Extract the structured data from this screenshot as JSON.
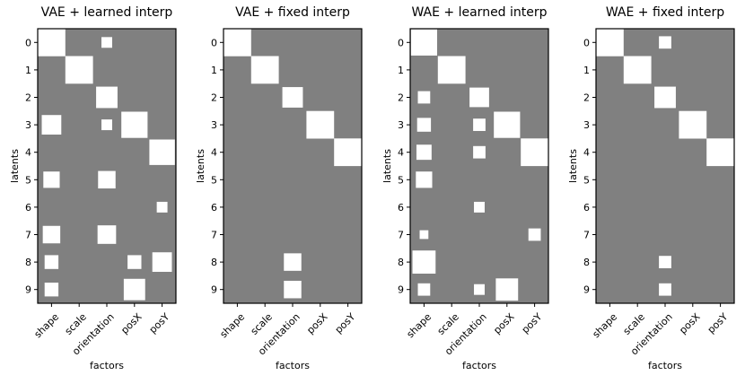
{
  "figure": {
    "background": "#ffffff",
    "cell_color": "#808080",
    "mark_color": "#ffffff",
    "frame_color": "#000000"
  },
  "chart_data": [
    {
      "type": "heatmap",
      "title": "VAE + learned interp",
      "xlabel": "factors",
      "ylabel": "latents",
      "factors": [
        "shape",
        "scale",
        "orientation",
        "posX",
        "posY"
      ],
      "latents": [
        "0",
        "1",
        "2",
        "3",
        "4",
        "5",
        "6",
        "7",
        "8",
        "9"
      ],
      "cells": [
        {
          "latent": 0,
          "factor": 0,
          "value": 1.0
        },
        {
          "latent": 0,
          "factor": 2,
          "value": 0.15
        },
        {
          "latent": 1,
          "factor": 1,
          "value": 1.0
        },
        {
          "latent": 2,
          "factor": 2,
          "value": 0.6
        },
        {
          "latent": 3,
          "factor": 0,
          "value": 0.5
        },
        {
          "latent": 3,
          "factor": 2,
          "value": 0.15
        },
        {
          "latent": 3,
          "factor": 3,
          "value": 0.9
        },
        {
          "latent": 4,
          "factor": 4,
          "value": 0.85
        },
        {
          "latent": 5,
          "factor": 0,
          "value": 0.35
        },
        {
          "latent": 5,
          "factor": 2,
          "value": 0.4
        },
        {
          "latent": 6,
          "factor": 4,
          "value": 0.15
        },
        {
          "latent": 7,
          "factor": 0,
          "value": 0.4
        },
        {
          "latent": 7,
          "factor": 2,
          "value": 0.45
        },
        {
          "latent": 8,
          "factor": 0,
          "value": 0.25
        },
        {
          "latent": 8,
          "factor": 3,
          "value": 0.25
        },
        {
          "latent": 8,
          "factor": 4,
          "value": 0.5
        },
        {
          "latent": 9,
          "factor": 0,
          "value": 0.25
        },
        {
          "latent": 9,
          "factor": 3,
          "value": 0.6
        }
      ]
    },
    {
      "type": "heatmap",
      "title": "VAE + fixed interp",
      "xlabel": "factors",
      "ylabel": "latents",
      "factors": [
        "shape",
        "scale",
        "orientation",
        "posX",
        "posY"
      ],
      "latents": [
        "0",
        "1",
        "2",
        "3",
        "4",
        "5",
        "6",
        "7",
        "8",
        "9"
      ],
      "cells": [
        {
          "latent": 0,
          "factor": 0,
          "value": 1.0
        },
        {
          "latent": 1,
          "factor": 1,
          "value": 1.0
        },
        {
          "latent": 2,
          "factor": 2,
          "value": 0.55
        },
        {
          "latent": 3,
          "factor": 3,
          "value": 1.0
        },
        {
          "latent": 4,
          "factor": 4,
          "value": 1.0
        },
        {
          "latent": 8,
          "factor": 2,
          "value": 0.4
        },
        {
          "latent": 9,
          "factor": 2,
          "value": 0.4
        }
      ]
    },
    {
      "type": "heatmap",
      "title": "WAE + learned interp",
      "xlabel": "factors",
      "ylabel": "latents",
      "factors": [
        "shape",
        "scale",
        "orientation",
        "posX",
        "posY"
      ],
      "latents": [
        "0",
        "1",
        "2",
        "3",
        "4",
        "5",
        "6",
        "7",
        "8",
        "9"
      ],
      "cells": [
        {
          "latent": 0,
          "factor": 0,
          "value": 0.9
        },
        {
          "latent": 1,
          "factor": 1,
          "value": 1.0
        },
        {
          "latent": 2,
          "factor": 0,
          "value": 0.2
        },
        {
          "latent": 2,
          "factor": 2,
          "value": 0.5
        },
        {
          "latent": 3,
          "factor": 0,
          "value": 0.25
        },
        {
          "latent": 3,
          "factor": 2,
          "value": 0.2
        },
        {
          "latent": 3,
          "factor": 3,
          "value": 0.9
        },
        {
          "latent": 4,
          "factor": 0,
          "value": 0.3
        },
        {
          "latent": 4,
          "factor": 2,
          "value": 0.2
        },
        {
          "latent": 4,
          "factor": 4,
          "value": 1.0
        },
        {
          "latent": 5,
          "factor": 0,
          "value": 0.35
        },
        {
          "latent": 6,
          "factor": 2,
          "value": 0.15
        },
        {
          "latent": 7,
          "factor": 0,
          "value": 0.1
        },
        {
          "latent": 7,
          "factor": 4,
          "value": 0.2
        },
        {
          "latent": 8,
          "factor": 0,
          "value": 0.7
        },
        {
          "latent": 9,
          "factor": 0,
          "value": 0.2
        },
        {
          "latent": 9,
          "factor": 2,
          "value": 0.15
        },
        {
          "latent": 9,
          "factor": 3,
          "value": 0.65
        }
      ]
    },
    {
      "type": "heatmap",
      "title": "WAE + fixed interp",
      "xlabel": "factors",
      "ylabel": "latents",
      "factors": [
        "shape",
        "scale",
        "orientation",
        "posX",
        "posY"
      ],
      "latents": [
        "0",
        "1",
        "2",
        "3",
        "4",
        "5",
        "6",
        "7",
        "8",
        "9"
      ],
      "cells": [
        {
          "latent": 0,
          "factor": 0,
          "value": 1.0
        },
        {
          "latent": 0,
          "factor": 2,
          "value": 0.2
        },
        {
          "latent": 1,
          "factor": 1,
          "value": 1.0
        },
        {
          "latent": 2,
          "factor": 2,
          "value": 0.6
        },
        {
          "latent": 3,
          "factor": 3,
          "value": 1.0
        },
        {
          "latent": 4,
          "factor": 4,
          "value": 1.0
        },
        {
          "latent": 8,
          "factor": 2,
          "value": 0.2
        },
        {
          "latent": 9,
          "factor": 2,
          "value": 0.2
        }
      ]
    }
  ]
}
